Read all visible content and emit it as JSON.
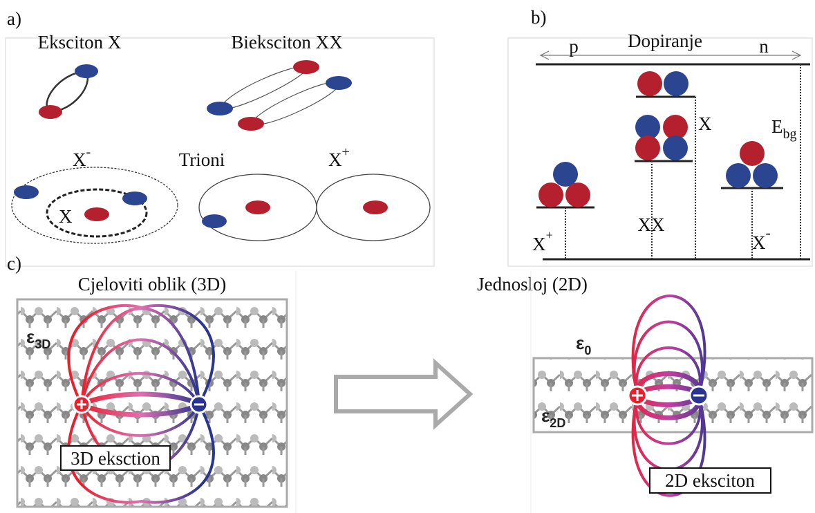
{
  "panel_a": {
    "label": "a)",
    "exciton": "Eksciton X",
    "biexciton": "Bieksciton XX",
    "trion_minus": {
      "base": "X",
      "sup": "-"
    },
    "trions": "Trioni",
    "trion_plus": {
      "base": "X",
      "sup": "+"
    },
    "inner_x": "X"
  },
  "panel_b": {
    "label": "b)",
    "doping": "Dopiranje",
    "p": "p",
    "n": "n",
    "x": "X",
    "ebg": {
      "base": "E",
      "sub": "bg"
    },
    "xx": "XX",
    "x_plus": {
      "base": "X",
      "sup": "+"
    },
    "x_minus": {
      "base": "X",
      "sup": "-"
    }
  },
  "panel_c": {
    "label": "c)",
    "bulk_title": "Cjeloviti oblik (3D)",
    "mono_title": "Jednosloj (2D)",
    "eps_3d": {
      "base": "ε",
      "sub": "3D"
    },
    "exciton_3d": "3D eksction",
    "eps_0": {
      "base": "ε",
      "sub": "0"
    },
    "eps_2d": {
      "base": "ε",
      "sub": "2D"
    },
    "exciton_2d": "2D eksciton"
  }
}
